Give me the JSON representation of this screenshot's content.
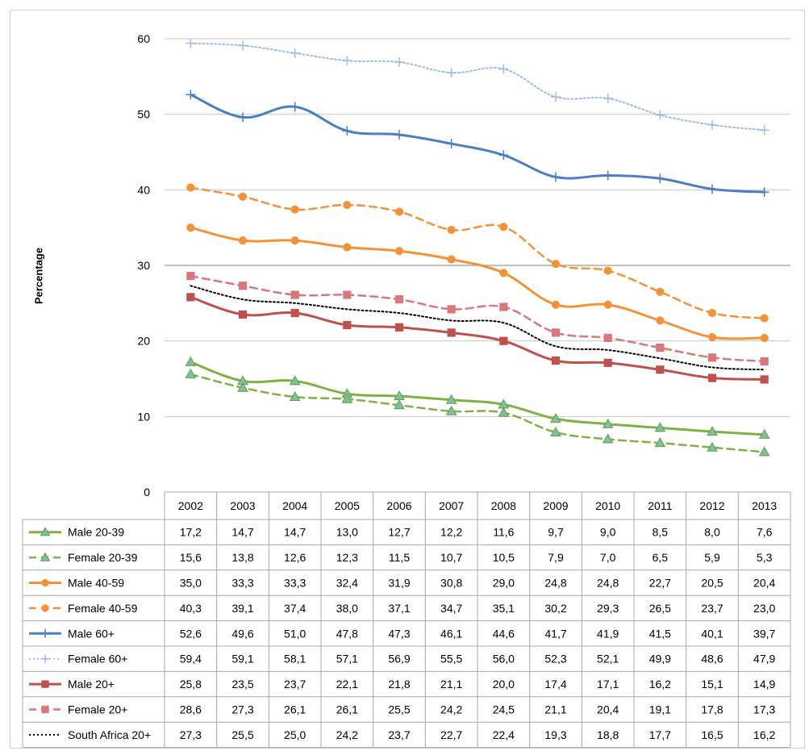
{
  "chart_data": {
    "type": "line",
    "title": "",
    "xlabel": "",
    "ylabel": "Percentage",
    "ylim": [
      0,
      60
    ],
    "yticks": [
      0,
      10,
      20,
      30,
      40,
      50,
      60
    ],
    "grid": true,
    "legend": "data-table-below",
    "categories": [
      "2002",
      "2003",
      "2004",
      "2005",
      "2006",
      "2007",
      "2008",
      "2009",
      "2010",
      "2011",
      "2012",
      "2013"
    ],
    "series": [
      {
        "name": "Male 20-39",
        "color": "#7cb342",
        "dash": "solid",
        "marker": "triangle",
        "values": [
          17.2,
          14.7,
          14.7,
          13.0,
          12.7,
          12.2,
          11.6,
          9.7,
          9.0,
          8.5,
          8.0,
          7.6
        ],
        "labels": [
          "17,2",
          "14,7",
          "14,7",
          "13,0",
          "12,7",
          "12,2",
          "11,6",
          "9,7",
          "9,0",
          "8,5",
          "8,0",
          "7,6"
        ]
      },
      {
        "name": "Female 20-39",
        "color": "#7cb342",
        "dash": "dashed",
        "marker": "triangle",
        "values": [
          15.6,
          13.8,
          12.6,
          12.3,
          11.5,
          10.7,
          10.5,
          7.9,
          7.0,
          6.5,
          5.9,
          5.3
        ],
        "labels": [
          "15,6",
          "13,8",
          "12,6",
          "12,3",
          "11,5",
          "10,7",
          "10,5",
          "7,9",
          "7,0",
          "6,5",
          "5,9",
          "5,3"
        ]
      },
      {
        "name": "Male 40-59",
        "color": "#f4923a",
        "dash": "solid",
        "marker": "circle",
        "values": [
          35.0,
          33.3,
          33.3,
          32.4,
          31.9,
          30.8,
          29.0,
          24.8,
          24.8,
          22.7,
          20.5,
          20.4
        ],
        "labels": [
          "35,0",
          "33,3",
          "33,3",
          "32,4",
          "31,9",
          "30,8",
          "29,0",
          "24,8",
          "24,8",
          "22,7",
          "20,5",
          "20,4"
        ]
      },
      {
        "name": "Female 40-59",
        "color": "#f4923a",
        "dash": "dashed",
        "marker": "circle",
        "values": [
          40.3,
          39.1,
          37.4,
          38.0,
          37.1,
          34.7,
          35.1,
          30.2,
          29.3,
          26.5,
          23.7,
          23.0
        ],
        "labels": [
          "40,3",
          "39,1",
          "37,4",
          "38,0",
          "37,1",
          "34,7",
          "35,1",
          "30,2",
          "29,3",
          "26,5",
          "23,7",
          "23,0"
        ]
      },
      {
        "name": "Male 60+",
        "color": "#4a7fc1",
        "dash": "solid",
        "marker": "plus",
        "values": [
          52.6,
          49.6,
          51.0,
          47.8,
          47.3,
          46.1,
          44.6,
          41.7,
          41.9,
          41.5,
          40.1,
          39.7
        ],
        "labels": [
          "52,6",
          "49,6",
          "51,0",
          "47,8",
          "47,3",
          "46,1",
          "44,6",
          "41,7",
          "41,9",
          "41,5",
          "40,1",
          "39,7"
        ]
      },
      {
        "name": "Female 60+",
        "color": "#9dbce6",
        "dash": "dotted",
        "marker": "plus",
        "values": [
          59.4,
          59.1,
          58.1,
          57.1,
          56.9,
          55.5,
          56.0,
          52.3,
          52.1,
          49.9,
          48.6,
          47.9
        ],
        "labels": [
          "59,4",
          "59,1",
          "58,1",
          "57,1",
          "56,9",
          "55,5",
          "56,0",
          "52,3",
          "52,1",
          "49,9",
          "48,6",
          "47,9"
        ]
      },
      {
        "name": "Male 20+",
        "color": "#c0504d",
        "dash": "solid",
        "marker": "square",
        "values": [
          25.8,
          23.5,
          23.7,
          22.1,
          21.8,
          21.1,
          20.0,
          17.4,
          17.1,
          16.2,
          15.1,
          14.9
        ],
        "labels": [
          "25,8",
          "23,5",
          "23,7",
          "22,1",
          "21,8",
          "21,1",
          "20,0",
          "17,4",
          "17,1",
          "16,2",
          "15,1",
          "14,9"
        ]
      },
      {
        "name": "Female 20+",
        "color": "#d9777a",
        "dash": "dashed",
        "marker": "square",
        "values": [
          28.6,
          27.3,
          26.1,
          26.1,
          25.5,
          24.2,
          24.5,
          21.1,
          20.4,
          19.1,
          17.8,
          17.3
        ],
        "labels": [
          "28,6",
          "27,3",
          "26,1",
          "26,1",
          "25,5",
          "24,2",
          "24,5",
          "21,1",
          "20,4",
          "19,1",
          "17,8",
          "17,3"
        ]
      },
      {
        "name": "South Africa 20+",
        "color": "#000000",
        "dash": "dotted",
        "marker": "none",
        "values": [
          27.3,
          25.5,
          25.0,
          24.2,
          23.7,
          22.7,
          22.4,
          19.3,
          18.8,
          17.7,
          16.5,
          16.2
        ],
        "labels": [
          "27,3",
          "25,5",
          "25,0",
          "24,2",
          "23,7",
          "22,7",
          "22,4",
          "19,3",
          "18,8",
          "17,7",
          "16,5",
          "16,2"
        ]
      }
    ]
  }
}
